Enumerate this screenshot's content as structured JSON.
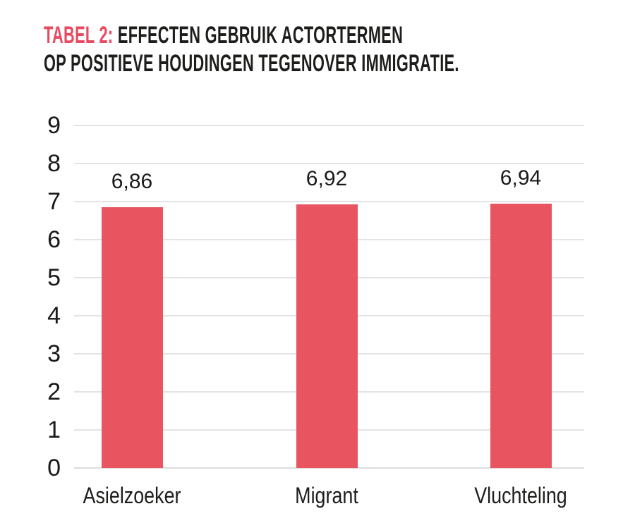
{
  "title": {
    "prefix": "TABEL 2:",
    "line1": "EFFECTEN GEBRUIK ACTORTERMEN",
    "line2": "OP POSITIEVE HOUDINGEN TEGENOVER IMMIGRATIE.",
    "accent_color": "#e84a5f",
    "text_color": "#1d1d1b"
  },
  "chart_data": {
    "type": "bar",
    "title": "TABEL 2: EFFECTEN GEBRUIK ACTORTERMEN OP POSITIEVE HOUDINGEN TEGENOVER IMMIGRATIE.",
    "categories": [
      "Asielzoeker",
      "Migrant",
      "Vluchteling"
    ],
    "values": [
      6.86,
      6.92,
      6.94
    ],
    "value_labels": [
      "6,86",
      "6,92",
      "6,94"
    ],
    "xlabel": "",
    "ylabel": "",
    "ylim": [
      0,
      9
    ],
    "yticks": [
      0,
      1,
      2,
      3,
      4,
      5,
      6,
      7,
      8,
      9
    ],
    "grid": true,
    "legend": false,
    "bar_color": "#e85460",
    "gridline_color": "#e3e3e3",
    "baseline_color": "#dcdcdc",
    "text_color": "#1a1a1a"
  }
}
